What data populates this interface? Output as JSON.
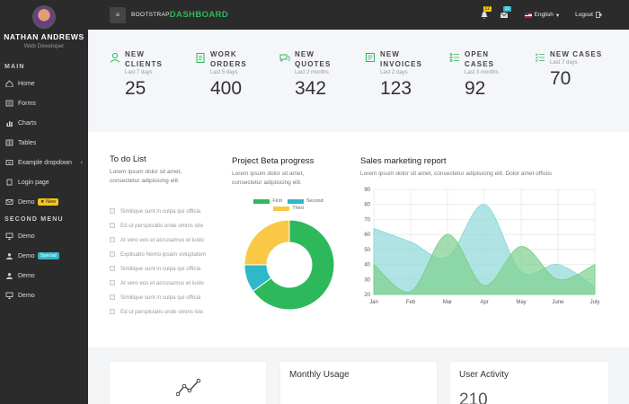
{
  "sidebar": {
    "user_name": "NATHAN ANDREWS",
    "user_role": "Web Developer",
    "main_title": "MAIN",
    "second_title": "SECOND MENU",
    "main_items": [
      {
        "label": "Home",
        "icon": "home-icon"
      },
      {
        "label": "Forms",
        "icon": "forms-icon"
      },
      {
        "label": "Charts",
        "icon": "charts-icon"
      },
      {
        "label": "Tables",
        "icon": "tables-icon"
      },
      {
        "label": "Example dropdown",
        "icon": "dropdown-icon",
        "arrow": "‹"
      },
      {
        "label": "Login page",
        "icon": "login-icon"
      },
      {
        "label": "Demo",
        "icon": "mail-icon",
        "badge": "New"
      }
    ],
    "second_items": [
      {
        "label": "Demo",
        "icon": "monitor-icon"
      },
      {
        "label": "Demo",
        "icon": "user-icon",
        "badge": "Special"
      },
      {
        "label": "Demo",
        "icon": "user-icon"
      },
      {
        "label": "Demo",
        "icon": "monitor-icon"
      }
    ]
  },
  "topbar": {
    "menu_glyph": "≡",
    "brand_small": "BOOTSTRAP",
    "brand_big": "DASHBOARD",
    "notif_count_1": "12",
    "notif_count_2": "10",
    "language": "English",
    "language_caret": "▾",
    "logout": "Logout"
  },
  "stats": [
    {
      "label_1": "NEW",
      "label_2": "CLIENTS",
      "sub": "Last 7 days",
      "value": "25",
      "icon": "user-icon"
    },
    {
      "label_1": "WORK",
      "label_2": "ORDERS",
      "sub": "Last 5 days",
      "value": "400",
      "icon": "clipboard-icon"
    },
    {
      "label_1": "NEW",
      "label_2": "QUOTES",
      "sub": "Last 2 months",
      "value": "342",
      "icon": "chat-icon"
    },
    {
      "label_1": "NEW",
      "label_2": "INVOICES",
      "sub": "Last 2 days",
      "value": "123",
      "icon": "invoice-icon"
    },
    {
      "label_1": "OPEN CASES",
      "label_2": "",
      "sub": "Last 3 months",
      "value": "92",
      "icon": "list-icon"
    },
    {
      "label_1": "NEW CASES",
      "label_2": "",
      "sub": "Last 7 days",
      "value": "70",
      "icon": "list-check-icon"
    }
  ],
  "todo": {
    "title": "To do List",
    "desc_1": "Lorem ipsum dolor sit amet,",
    "desc_2": "consectetur adipisicing elit.",
    "items": [
      "Similique sunt in culpa qui officia",
      "Ed ut perspiciatis unde omnis iste",
      "At vero eos et accusamus et iusto",
      "Explicabo Nemo ipsam voluptatem",
      "Similique sunt in culpa qui officia",
      "At vero eos et accusamus et iusto",
      "Similique sunt in culpa qui officia",
      "Ed ut perspiciatis unde omnis iste"
    ]
  },
  "project": {
    "title": "Project Beta progress",
    "desc_1": "Lorem ipsum dolor sit amet,",
    "desc_2": "consectetur adipisicing elit.",
    "legend": [
      {
        "label": "First",
        "color": "#2eb85c"
      },
      {
        "label": "Second",
        "color": "#2eb8c9"
      },
      {
        "label": "Third",
        "color": "#f9c846"
      }
    ]
  },
  "sales": {
    "title": "Sales marketing report",
    "desc": "Lorem ipsum dolor sit amet, consectetur adipisicing elit. Dolor amet officiis"
  },
  "chart_data": [
    {
      "type": "pie",
      "variant": "doughnut",
      "labels": [
        "First",
        "Second",
        "Third"
      ],
      "values": [
        65,
        10,
        25
      ],
      "colors": [
        "#2eb85c",
        "#2eb8c9",
        "#f9c846"
      ],
      "legend": "top"
    },
    {
      "type": "area",
      "categories": [
        "Jan",
        "Feb",
        "Mar",
        "Apr",
        "May",
        "June",
        "July"
      ],
      "series": [
        {
          "values": [
            64,
            55,
            45,
            80,
            35,
            40,
            25
          ],
          "color": "#8fd9d9"
        },
        {
          "values": [
            40,
            22,
            60,
            26,
            52,
            30,
            40
          ],
          "color": "#7ed08f"
        }
      ],
      "ylim": [
        20,
        90
      ],
      "yticks": [
        20,
        30,
        40,
        50,
        60,
        70,
        80,
        90
      ],
      "grid": true
    }
  ],
  "cards": [
    {
      "title": "",
      "value": "",
      "icon": "line-chart-icon"
    },
    {
      "title": "Monthly Usage",
      "value": ""
    },
    {
      "title": "User Activity",
      "value": "210"
    }
  ]
}
